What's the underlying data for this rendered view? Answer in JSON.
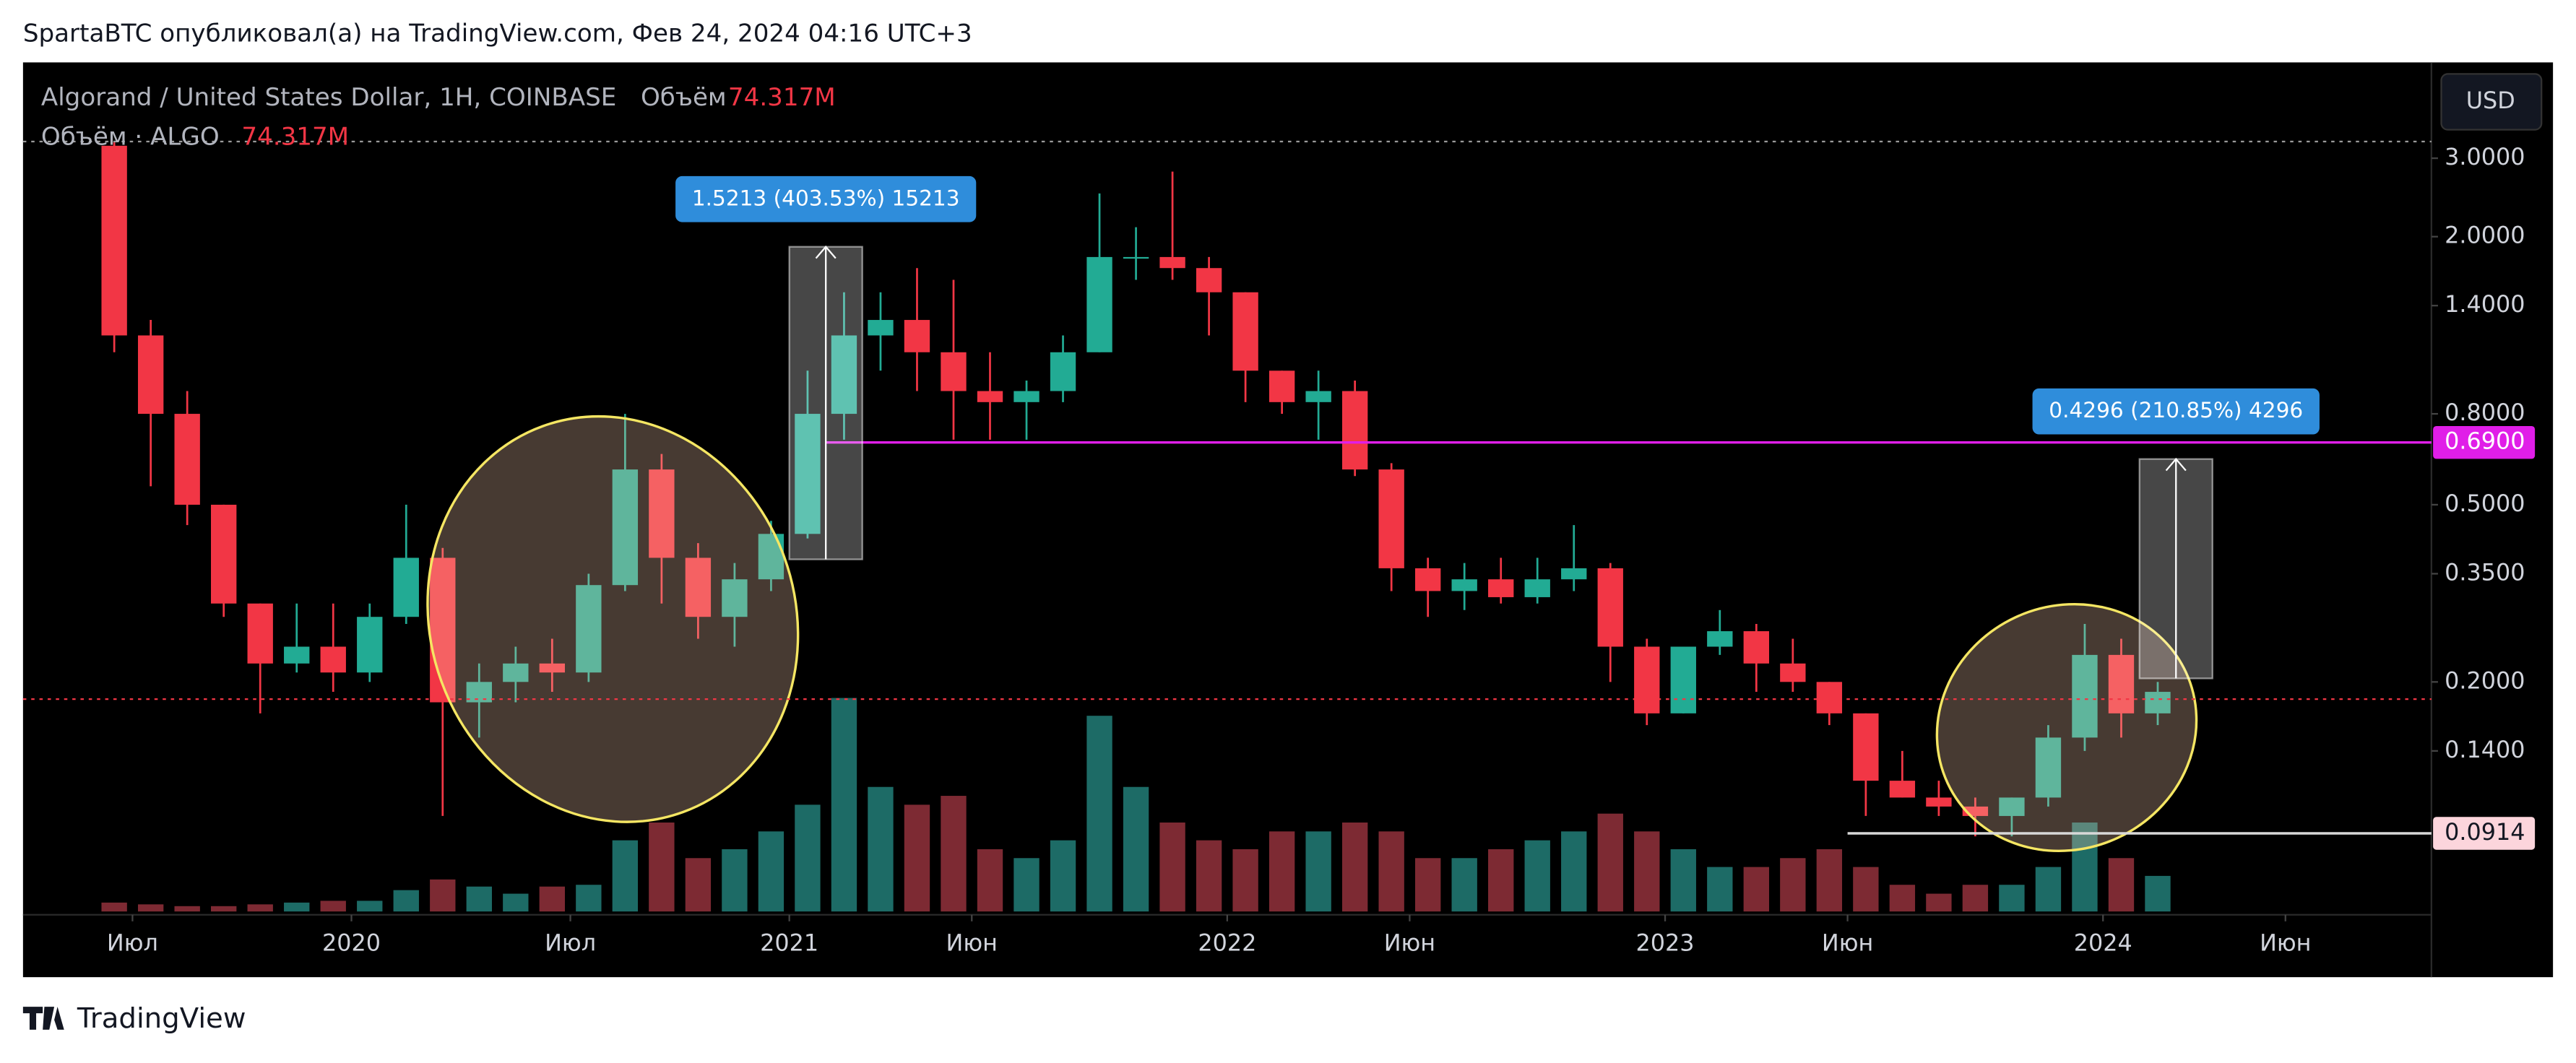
{
  "header": {
    "author_line": "SpartaBTC опубликовал(а) на TradingView.com, Фев 24, 2024 04:16 UTC+3",
    "brand": "TradingView"
  },
  "chart_data": {
    "type": "candlestick",
    "symbol": "Algorand / United States Dollar, 1H, COINBASE",
    "volume_title": "Объём",
    "volume_value": "74.317M",
    "volume_legend": "Объём · ALGO",
    "volume_legend_value": "74.317M",
    "currency": "USD",
    "log_scale": true,
    "ylim": [
      0.06,
      4.8
    ],
    "yticks": [
      {
        "value": 3,
        "label": "3.0000"
      },
      {
        "value": 2,
        "label": "2.0000"
      },
      {
        "value": 1.4,
        "label": "1.4000"
      },
      {
        "value": 0.8,
        "label": "0.8000"
      },
      {
        "value": 0.5,
        "label": "0.5000"
      },
      {
        "value": 0.35,
        "label": "0.3500"
      },
      {
        "value": 0.2,
        "label": "0.2000"
      },
      {
        "value": 0.14,
        "label": "0.1400"
      }
    ],
    "xlim": [
      "2019-04",
      "2024-10"
    ],
    "xticks": [
      {
        "value": "2019-07",
        "label": "Июл"
      },
      {
        "value": "2020-01",
        "label": "2020"
      },
      {
        "value": "2020-07",
        "label": "Июл"
      },
      {
        "value": "2021-01",
        "label": "2021"
      },
      {
        "value": "2021-06",
        "label": "Июн"
      },
      {
        "value": "2022-01",
        "label": "2022"
      },
      {
        "value": "2022-06",
        "label": "Июн"
      },
      {
        "value": "2023-01",
        "label": "2023"
      },
      {
        "value": "2023-06",
        "label": "Июн"
      },
      {
        "value": "2024-01",
        "label": "2024"
      },
      {
        "value": "2024-06",
        "label": "Июн"
      }
    ],
    "up_color": "#22ab94",
    "down_color": "#f23645",
    "up_volume_color": "#1d6b66",
    "down_volume_color": "#7d2a33",
    "x": [
      "2019-06",
      "2019-07",
      "2019-08",
      "2019-09",
      "2019-10",
      "2019-11",
      "2019-12",
      "2020-01",
      "2020-02",
      "2020-03",
      "2020-04",
      "2020-05",
      "2020-06",
      "2020-07",
      "2020-08",
      "2020-09",
      "2020-10",
      "2020-11",
      "2020-12",
      "2021-01",
      "2021-02",
      "2021-03",
      "2021-04",
      "2021-05",
      "2021-06",
      "2021-07",
      "2021-08",
      "2021-09",
      "2021-10",
      "2021-11",
      "2021-12",
      "2022-01",
      "2022-02",
      "2022-03",
      "2022-04",
      "2022-05",
      "2022-06",
      "2022-07",
      "2022-08",
      "2022-09",
      "2022-10",
      "2022-11",
      "2022-12",
      "2023-01",
      "2023-02",
      "2023-03",
      "2023-04",
      "2023-05",
      "2023-06",
      "2023-07",
      "2023-08",
      "2023-09",
      "2023-10",
      "2023-11",
      "2023-12",
      "2024-01",
      "2024-02"
    ],
    "open": [
      3.2,
      1.2,
      0.8,
      0.5,
      0.3,
      0.22,
      0.24,
      0.21,
      0.28,
      0.38,
      0.18,
      0.2,
      0.22,
      0.21,
      0.33,
      0.6,
      0.38,
      0.28,
      0.34,
      0.43,
      0.8,
      1.2,
      1.3,
      1.1,
      0.9,
      0.85,
      0.9,
      1.1,
      1.8,
      1.8,
      1.7,
      1.5,
      1.0,
      0.85,
      0.9,
      0.6,
      0.36,
      0.32,
      0.34,
      0.31,
      0.34,
      0.36,
      0.24,
      0.17,
      0.24,
      0.26,
      0.22,
      0.2,
      0.17,
      0.12,
      0.11,
      0.105,
      0.1,
      0.11,
      0.15,
      0.23,
      0.17
    ],
    "high": [
      3.27,
      1.3,
      0.9,
      0.5,
      0.3,
      0.3,
      0.3,
      0.3,
      0.5,
      0.4,
      0.22,
      0.24,
      0.25,
      0.35,
      0.8,
      0.65,
      0.41,
      0.37,
      0.46,
      1.0,
      1.5,
      1.5,
      1.7,
      1.6,
      1.1,
      0.95,
      1.2,
      2.5,
      2.1,
      2.8,
      1.8,
      1.5,
      1.0,
      1.0,
      0.95,
      0.62,
      0.38,
      0.37,
      0.38,
      0.38,
      0.45,
      0.37,
      0.25,
      0.24,
      0.29,
      0.27,
      0.25,
      0.2,
      0.17,
      0.14,
      0.12,
      0.11,
      0.11,
      0.16,
      0.27,
      0.25,
      0.2
    ],
    "low": [
      1.1,
      0.55,
      0.45,
      0.28,
      0.17,
      0.21,
      0.19,
      0.2,
      0.27,
      0.1,
      0.15,
      0.18,
      0.19,
      0.2,
      0.32,
      0.3,
      0.25,
      0.24,
      0.32,
      0.42,
      0.7,
      1.0,
      0.9,
      0.7,
      0.7,
      0.7,
      0.85,
      1.1,
      1.6,
      1.6,
      1.2,
      0.85,
      0.8,
      0.7,
      0.58,
      0.32,
      0.28,
      0.29,
      0.3,
      0.3,
      0.32,
      0.2,
      0.16,
      0.17,
      0.23,
      0.19,
      0.19,
      0.16,
      0.1,
      0.11,
      0.1,
      0.09,
      0.09,
      0.105,
      0.14,
      0.15,
      0.16
    ],
    "close": [
      1.2,
      0.8,
      0.5,
      0.3,
      0.22,
      0.24,
      0.21,
      0.28,
      0.38,
      0.18,
      0.2,
      0.22,
      0.21,
      0.33,
      0.6,
      0.38,
      0.28,
      0.34,
      0.43,
      0.8,
      1.2,
      1.3,
      1.1,
      0.9,
      0.85,
      0.9,
      1.1,
      1.8,
      1.8,
      1.7,
      1.5,
      1.0,
      0.85,
      0.9,
      0.6,
      0.36,
      0.32,
      0.34,
      0.31,
      0.34,
      0.36,
      0.24,
      0.17,
      0.24,
      0.26,
      0.22,
      0.2,
      0.17,
      0.12,
      0.11,
      0.105,
      0.1,
      0.11,
      0.15,
      0.23,
      0.17,
      0.19
    ],
    "volume": [
      5,
      4,
      3,
      3,
      4,
      5,
      6,
      6,
      12,
      18,
      14,
      10,
      14,
      15,
      40,
      50,
      30,
      35,
      45,
      60,
      120,
      70,
      60,
      65,
      35,
      30,
      40,
      110,
      70,
      50,
      40,
      35,
      45,
      45,
      50,
      45,
      30,
      30,
      35,
      40,
      45,
      55,
      45,
      35,
      25,
      25,
      30,
      35,
      25,
      15,
      10,
      15,
      15,
      25,
      50,
      30,
      20
    ],
    "levels": [
      {
        "price": 0.69,
        "label": "0.6900",
        "from": "2021-02",
        "color": "#e01ee8",
        "badge_color": "#e01ee8",
        "text_color": "#ffffff"
      },
      {
        "price": 0.0914,
        "label": "0.0914",
        "from": "2023-06",
        "color": "#d8d8d8",
        "badge_color": "#fcd5dc",
        "text_color": "#131722"
      }
    ],
    "price_lines": [
      {
        "price": 0.183,
        "color": "#f23645"
      },
      {
        "price": 3.27,
        "color": "#9a9a9a"
      }
    ],
    "measurements": [
      {
        "from": "2021-01",
        "to": "2021-03",
        "start": 0.377,
        "end": 1.898,
        "label": "1.5213 (403.53%) 15213"
      },
      {
        "from": "2024-02",
        "to": "2024-04",
        "start": 0.2037,
        "end": 0.6333,
        "label": "0.4296 (210.85%) 4296"
      }
    ]
  }
}
